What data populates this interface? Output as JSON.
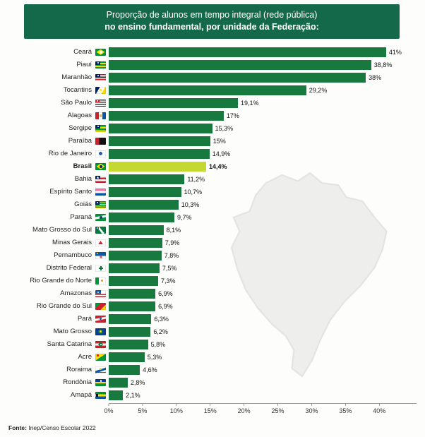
{
  "header": {
    "title_line1": "Proporção de alunos em tempo integral (rede pública)",
    "title_line2": "no ensino fundamental, por unidade da Federação:"
  },
  "footer": {
    "source_label": "Fonte:",
    "source_text": " Inep/Censo Escolar 2022"
  },
  "colors": {
    "header_bg": "#15694b",
    "bar": "#17793d",
    "highlight_bar": "#c4d832",
    "watermark": "#eeeeec"
  },
  "chart_data": {
    "type": "bar",
    "orientation": "horizontal",
    "title": "Proporção de alunos em tempo integral (rede pública) no ensino fundamental, por unidade da Federação",
    "source": "Fonte: Inep/Censo Escolar 2022",
    "x_ticks": [
      "0%",
      "5%",
      "10%",
      "15%",
      "20%",
      "25%",
      "30%",
      "35%",
      "40%"
    ],
    "x_tick_values": [
      0,
      5,
      10,
      15,
      20,
      25,
      30,
      35,
      40
    ],
    "xlim": [
      0,
      45.5
    ],
    "grid": false,
    "legend": false,
    "rows": [
      {
        "label": "Ceará",
        "value": 41,
        "display": "41%",
        "flag": "ceara",
        "highlight": false
      },
      {
        "label": "Piauí",
        "value": 38.8,
        "display": "38,8%",
        "flag": "piaui",
        "highlight": false
      },
      {
        "label": "Maranhão",
        "value": 38,
        "display": "38%",
        "flag": "maranhao",
        "highlight": false
      },
      {
        "label": "Tocantins",
        "value": 29.2,
        "display": "29,2%",
        "flag": "tocantins",
        "highlight": false
      },
      {
        "label": "São Paulo",
        "value": 19.1,
        "display": "19,1%",
        "flag": "sao-paulo",
        "highlight": false
      },
      {
        "label": "Alagoas",
        "value": 17,
        "display": "17%",
        "flag": "alagoas",
        "highlight": false
      },
      {
        "label": "Sergipe",
        "value": 15.3,
        "display": "15,3%",
        "flag": "sergipe",
        "highlight": false
      },
      {
        "label": "Paraíba",
        "value": 15,
        "display": "15%",
        "flag": "paraiba",
        "highlight": false
      },
      {
        "label": "Rio de Janeiro",
        "value": 14.9,
        "display": "14,9%",
        "flag": "rio-de-janeiro",
        "highlight": false
      },
      {
        "label": "Brasil",
        "value": 14.4,
        "display": "14,4%",
        "flag": "brasil",
        "highlight": true
      },
      {
        "label": "Bahia",
        "value": 11.2,
        "display": "11,2%",
        "flag": "bahia",
        "highlight": false
      },
      {
        "label": "Espírito Santo",
        "value": 10.7,
        "display": "10,7%",
        "flag": "espirito-santo",
        "highlight": false
      },
      {
        "label": "Goiás",
        "value": 10.3,
        "display": "10,3%",
        "flag": "goias",
        "highlight": false
      },
      {
        "label": "Paraná",
        "value": 9.7,
        "display": "9,7%",
        "flag": "parana",
        "highlight": false
      },
      {
        "label": "Mato Grosso do Sul",
        "value": 8.1,
        "display": "8,1%",
        "flag": "mato-grosso-do-sul",
        "highlight": false
      },
      {
        "label": "Minas Gerais",
        "value": 7.9,
        "display": "7,9%",
        "flag": "minas-gerais",
        "highlight": false
      },
      {
        "label": "Pernambuco",
        "value": 7.8,
        "display": "7,8%",
        "flag": "pernambuco",
        "highlight": false
      },
      {
        "label": "Distrito Federal",
        "value": 7.5,
        "display": "7,5%",
        "flag": "distrito-federal",
        "highlight": false
      },
      {
        "label": "Rio Grande do Norte",
        "value": 7.3,
        "display": "7,3%",
        "flag": "rio-grande-do-norte",
        "highlight": false
      },
      {
        "label": "Amazonas",
        "value": 6.9,
        "display": "6,9%",
        "flag": "amazonas",
        "highlight": false
      },
      {
        "label": "Rio Grande do Sul",
        "value": 6.9,
        "display": "6,9%",
        "flag": "rio-grande-do-sul",
        "highlight": false
      },
      {
        "label": "Pará",
        "value": 6.3,
        "display": "6,3%",
        "flag": "para",
        "highlight": false
      },
      {
        "label": "Mato Grosso",
        "value": 6.2,
        "display": "6,2%",
        "flag": "mato-grosso",
        "highlight": false
      },
      {
        "label": "Santa Catarina",
        "value": 5.8,
        "display": "5,8%",
        "flag": "santa-catarina",
        "highlight": false
      },
      {
        "label": "Acre",
        "value": 5.3,
        "display": "5,3%",
        "flag": "acre",
        "highlight": false
      },
      {
        "label": "Roraima",
        "value": 4.6,
        "display": "4,6%",
        "flag": "roraima",
        "highlight": false
      },
      {
        "label": "Rondônia",
        "value": 2.8,
        "display": "2,8%",
        "flag": "rondonia",
        "highlight": false
      },
      {
        "label": "Amapá",
        "value": 2.1,
        "display": "2,1%",
        "flag": "amapa",
        "highlight": false
      }
    ]
  }
}
